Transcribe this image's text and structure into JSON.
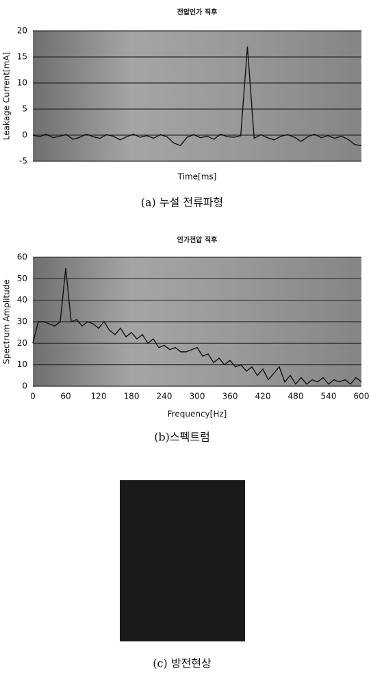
{
  "chart_data": [
    {
      "type": "line",
      "title": "전압인가 직후",
      "x_label": "Time[ms]",
      "y_label": "Leakage Current[mA]",
      "caption": "(a) 누설 전류파형",
      "ylim": [
        -5,
        20
      ],
      "yticks": [
        -5,
        0,
        5,
        10,
        15,
        20
      ],
      "grid": true,
      "series": [
        {
          "color": "#111111",
          "values": [
            0,
            -0.3,
            0.2,
            -0.5,
            -0.2,
            0.1,
            -0.8,
            -0.4,
            0.2,
            -0.3,
            -0.6,
            0.1,
            -0.2,
            -0.9,
            -0.3,
            0.2,
            -0.4,
            -0.1,
            -0.6,
            0.1,
            -0.3,
            -1.5,
            -2,
            -0.4,
            0.1,
            -0.5,
            -0.2,
            -0.8,
            0.2,
            -0.3,
            -0.4,
            -0.1,
            17,
            -0.6,
            0.1,
            -0.5,
            -0.9,
            -0.2,
            0.1,
            -0.4,
            -1.2,
            -0.3,
            0.2,
            -0.5,
            -0.1,
            -0.6,
            -0.2,
            -0.8,
            -1.8,
            -2
          ]
        }
      ]
    },
    {
      "type": "line",
      "title": "인가전압 직후",
      "x_label": "Frequency[Hz]",
      "y_label": "Spectrum Amplitude",
      "caption": "(b)스펙트럼",
      "xlim": [
        0,
        600
      ],
      "xticks": [
        0,
        60,
        120,
        180,
        240,
        300,
        360,
        420,
        480,
        540,
        600
      ],
      "ylim": [
        0,
        60
      ],
      "yticks": [
        0,
        10,
        20,
        30,
        40,
        50,
        60
      ],
      "grid": true,
      "x": [
        0,
        10,
        20,
        30,
        40,
        50,
        60,
        70,
        80,
        90,
        100,
        110,
        120,
        130,
        140,
        150,
        160,
        170,
        180,
        190,
        200,
        210,
        220,
        230,
        240,
        250,
        260,
        270,
        280,
        290,
        300,
        310,
        320,
        330,
        340,
        350,
        360,
        370,
        380,
        390,
        400,
        410,
        420,
        430,
        440,
        450,
        460,
        470,
        480,
        490,
        500,
        510,
        520,
        530,
        540,
        550,
        560,
        570,
        580,
        590,
        600
      ],
      "series": [
        {
          "color": "#111111",
          "values": [
            20,
            30,
            30,
            29,
            28,
            30,
            55,
            30,
            31,
            28,
            30,
            29,
            27,
            30,
            26,
            24,
            27,
            23,
            25,
            22,
            24,
            20,
            22,
            18,
            19,
            17,
            18,
            16,
            16,
            17,
            18,
            14,
            15,
            11,
            13,
            10,
            12,
            9,
            10,
            7,
            9,
            5,
            8,
            3,
            6,
            9,
            2,
            5,
            1,
            4,
            1,
            3,
            2,
            4,
            1,
            3,
            2,
            3,
            1,
            4,
            2
          ]
        }
      ]
    }
  ],
  "image": {
    "caption": "(c) 방전현상"
  }
}
